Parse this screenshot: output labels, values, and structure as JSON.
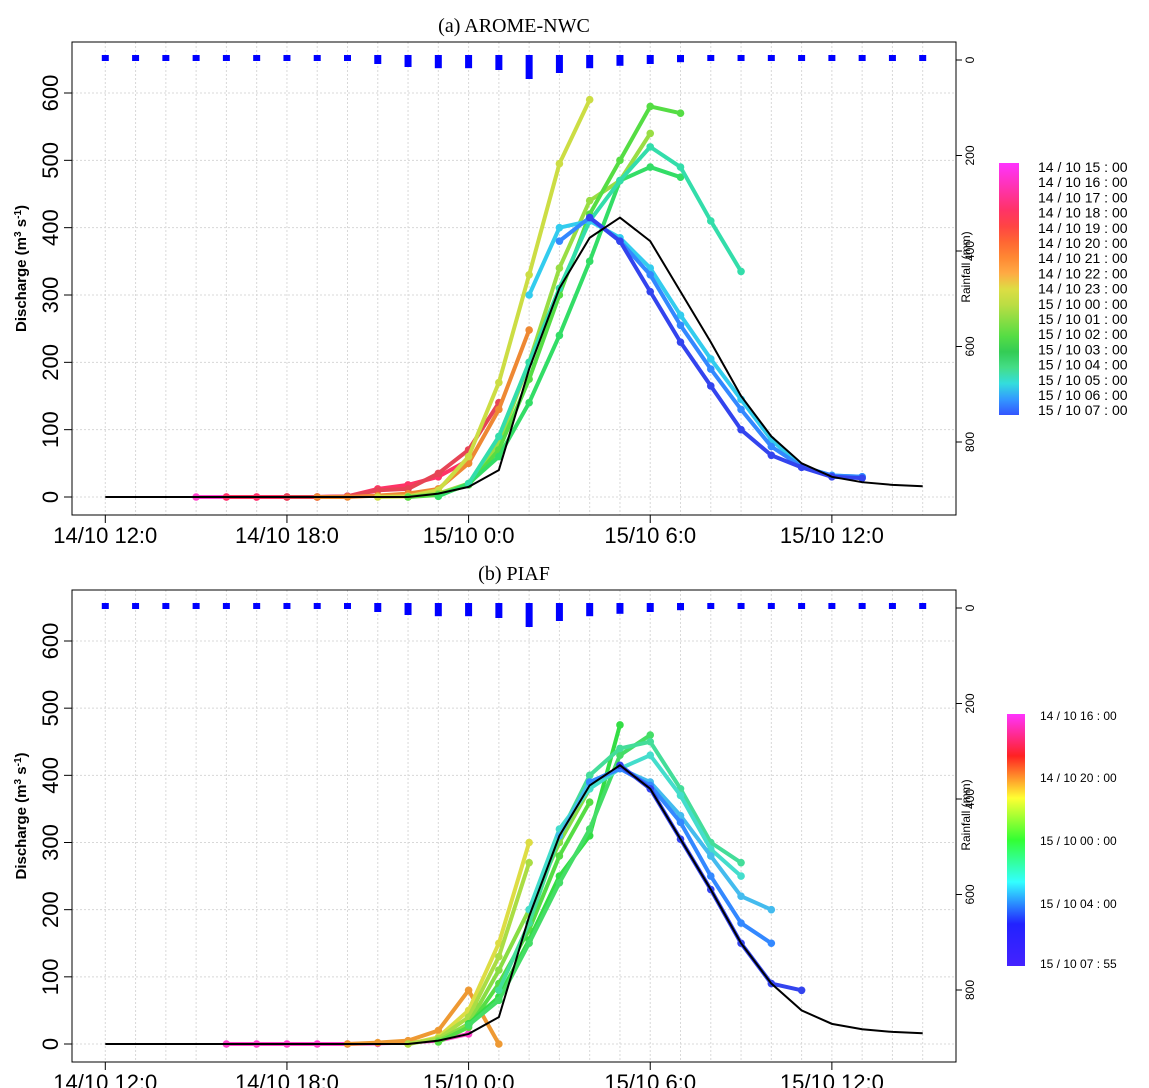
{
  "chart_data": [
    {
      "type": "line",
      "title": "(a) AROME-NWC",
      "ylabel": "Discharge (m³ s⁻¹)",
      "ylabel_main": "Discharge (m",
      "ylabel_sup1": "3",
      "ylabel_mid": " s",
      "ylabel_sup2": "-1",
      "ylabel_end": ")",
      "y2label": "Rainfall (mm)",
      "ylim": [
        0,
        620
      ],
      "y2lim": [
        0,
        900
      ],
      "y2_reversed": true,
      "yticks": [
        "0",
        "100",
        "200",
        "300",
        "400",
        "500",
        "600"
      ],
      "y2ticks": [
        "0",
        "200",
        "400",
        "600",
        "800"
      ],
      "xticks": [
        {
          "label": "14/10 12:0",
          "h": 0
        },
        {
          "label": "14/10 18:0",
          "h": 6
        },
        {
          "label": "15/10 0:0",
          "h": 12
        },
        {
          "label": "15/10 6:0",
          "h": 18
        },
        {
          "label": "15/10 12:0",
          "h": 24
        }
      ],
      "grid": true,
      "rain_h": [
        0,
        1,
        2,
        3,
        4,
        5,
        6,
        7,
        8,
        9,
        10,
        11,
        12,
        13,
        14,
        15,
        16,
        17,
        18,
        19,
        20,
        21,
        22,
        23,
        24,
        25,
        26,
        27
      ],
      "rain_mm": [
        10,
        10,
        10,
        10,
        10,
        10,
        10,
        10,
        10,
        15,
        20,
        22,
        22,
        25,
        40,
        30,
        22,
        18,
        15,
        12,
        10,
        10,
        10,
        10,
        10,
        10,
        10,
        10
      ],
      "observed": {
        "h": [
          0,
          6,
          10,
          11,
          12,
          13,
          14,
          15,
          16,
          17,
          18,
          19,
          20,
          21,
          22,
          23,
          24,
          25,
          26,
          27
        ],
        "values": [
          0,
          0,
          0,
          5,
          15,
          40,
          190,
          310,
          385,
          415,
          380,
          305,
          230,
          150,
          90,
          50,
          30,
          22,
          18,
          16
        ]
      },
      "legend_labels": [
        "14 / 10   15 : 00",
        "14 / 10   16 : 00",
        "14 / 10   17 : 00",
        "14 / 10   18 : 00",
        "14 / 10   19 : 00",
        "14 / 10   20 : 00",
        "14 / 10   21 : 00",
        "14 / 10   22 : 00",
        "14 / 10   23 : 00",
        "15 / 10   00 : 00",
        "15 / 10   01 : 00",
        "15 / 10   02 : 00",
        "15 / 10   03 : 00",
        "15 / 10   04 : 00",
        "15 / 10   05 : 00",
        "15 / 10   06 : 00",
        "15 / 10   07 : 00"
      ],
      "legend_colors": [
        "#ff33ff",
        "#ff33cc",
        "#ff3399",
        "#ff3366",
        "#ff4444",
        "#ff6633",
        "#ff8833",
        "#ffaa44",
        "#dddd44",
        "#bbdd44",
        "#88dd44",
        "#55dd44",
        "#33cc55",
        "#44dd88",
        "#33dddd",
        "#3399ff",
        "#3355ff"
      ],
      "series": [
        {
          "color": "#ff44cc",
          "h": [
            3,
            4,
            5,
            6,
            7,
            8,
            9,
            10
          ],
          "values": [
            0,
            0,
            0,
            0,
            0,
            1,
            2,
            3
          ]
        },
        {
          "color": "#ff3366",
          "h": [
            4,
            5,
            6,
            7,
            8,
            9,
            10,
            11,
            12
          ],
          "values": [
            0,
            0,
            0,
            0,
            1,
            12,
            18,
            30,
            55
          ]
        },
        {
          "color": "#e64455",
          "h": [
            6,
            7,
            8,
            9,
            10,
            11,
            12,
            13
          ],
          "values": [
            0,
            0,
            1,
            10,
            12,
            35,
            70,
            140
          ]
        },
        {
          "color": "#ee8833",
          "h": [
            7,
            8,
            9,
            10,
            11,
            12,
            13,
            14
          ],
          "values": [
            0,
            0,
            2,
            5,
            12,
            50,
            130,
            248
          ]
        },
        {
          "color": "#ccdd44",
          "h": [
            9,
            10,
            11,
            12,
            13,
            14,
            15,
            16
          ],
          "values": [
            0,
            1,
            10,
            60,
            170,
            330,
            495,
            590
          ]
        },
        {
          "color": "#99dd44",
          "h": [
            10,
            11,
            12,
            13,
            14,
            15,
            16,
            17,
            18
          ],
          "values": [
            0,
            5,
            20,
            80,
            200,
            340,
            440,
            470,
            540
          ]
        },
        {
          "color": "#55dd44",
          "h": [
            10,
            11,
            12,
            13,
            14,
            15,
            16,
            17,
            18,
            19
          ],
          "values": [
            0,
            3,
            18,
            70,
            175,
            300,
            420,
            500,
            580,
            570
          ]
        },
        {
          "color": "#33dd66",
          "h": [
            11,
            12,
            13,
            14,
            15,
            16,
            17,
            18,
            19
          ],
          "values": [
            1,
            20,
            60,
            140,
            240,
            350,
            470,
            490,
            475
          ]
        },
        {
          "color": "#33ddaa",
          "h": [
            12,
            13,
            14,
            15,
            16,
            17,
            18,
            19,
            20,
            21
          ],
          "values": [
            20,
            90,
            200,
            310,
            410,
            470,
            520,
            490,
            410,
            335
          ]
        },
        {
          "color": "#33ccee",
          "h": [
            14,
            15,
            16,
            17,
            18,
            19,
            20,
            21,
            22,
            23,
            24,
            25
          ],
          "values": [
            300,
            400,
            410,
            385,
            340,
            270,
            205,
            145,
            85,
            45,
            32,
            30
          ]
        },
        {
          "color": "#3388ff",
          "h": [
            15,
            16,
            17,
            18,
            19,
            20,
            21,
            22,
            23,
            24,
            25
          ],
          "values": [
            380,
            415,
            380,
            330,
            255,
            190,
            130,
            75,
            45,
            32,
            30
          ]
        },
        {
          "color": "#3344ee",
          "h": [
            16,
            17,
            18,
            19,
            20,
            21,
            22,
            23,
            24,
            25
          ],
          "values": [
            415,
            380,
            305,
            230,
            165,
            100,
            62,
            44,
            30,
            28
          ]
        }
      ]
    },
    {
      "type": "line",
      "title": "(b) PIAF",
      "ylabel": "Discharge (m³ s⁻¹)",
      "ylabel_main": "Discharge (m",
      "ylabel_sup1": "3",
      "ylabel_mid": " s",
      "ylabel_sup2": "-1",
      "ylabel_end": ")",
      "y2label": "Rainfall (mm)",
      "ylim": [
        0,
        620
      ],
      "y2lim": [
        0,
        900
      ],
      "y2_reversed": true,
      "yticks": [
        "0",
        "100",
        "200",
        "300",
        "400",
        "500",
        "600"
      ],
      "y2ticks": [
        "0",
        "200",
        "400",
        "600",
        "800"
      ],
      "xticks": [
        {
          "label": "14/10 12:0",
          "h": 0
        },
        {
          "label": "14/10 18:0",
          "h": 6
        },
        {
          "label": "15/10 0:0",
          "h": 12
        },
        {
          "label": "15/10 6:0",
          "h": 18
        },
        {
          "label": "15/10 12:0",
          "h": 24
        }
      ],
      "grid": true,
      "rain_h": [
        0,
        1,
        2,
        3,
        4,
        5,
        6,
        7,
        8,
        9,
        10,
        11,
        12,
        13,
        14,
        15,
        16,
        17,
        18,
        19,
        20,
        21,
        22,
        23,
        24,
        25,
        26,
        27
      ],
      "rain_mm": [
        10,
        10,
        10,
        10,
        10,
        10,
        10,
        10,
        10,
        15,
        20,
        22,
        22,
        25,
        40,
        30,
        22,
        18,
        15,
        12,
        10,
        10,
        10,
        10,
        10,
        10,
        10,
        10
      ],
      "observed": {
        "h": [
          0,
          6,
          10,
          11,
          12,
          13,
          14,
          15,
          16,
          17,
          18,
          19,
          20,
          21,
          22,
          23,
          24,
          25,
          26,
          27
        ],
        "values": [
          0,
          0,
          0,
          5,
          15,
          40,
          190,
          310,
          385,
          415,
          380,
          305,
          230,
          150,
          90,
          50,
          30,
          22,
          18,
          16
        ]
      },
      "legend_labels": [
        "14 / 10   16 : 00",
        "14 / 10   20 : 00",
        "15 / 10   00 : 00",
        "15 / 10   04 : 00",
        "15 / 10   07 : 55"
      ],
      "legend_colors": [
        "#ff33ff",
        "#ff2222",
        "#ffff33",
        "#33ff33",
        "#33ffff",
        "#2222ff",
        "#4422ff"
      ],
      "series": [
        {
          "color": "#ff44cc",
          "h": [
            4,
            5,
            6,
            7,
            8,
            9,
            10,
            11,
            12
          ],
          "values": [
            0,
            0,
            0,
            0,
            0,
            1,
            2,
            5,
            15
          ]
        },
        {
          "color": "#ee9933",
          "h": [
            8,
            9,
            10,
            11,
            12,
            13
          ],
          "values": [
            0,
            2,
            5,
            20,
            80,
            0
          ]
        },
        {
          "color": "#dddd44",
          "h": [
            10,
            11,
            12,
            13,
            14
          ],
          "values": [
            0,
            10,
            50,
            150,
            300
          ]
        },
        {
          "color": "#aadd44",
          "h": [
            10,
            11,
            12,
            13,
            14
          ],
          "values": [
            0,
            8,
            40,
            130,
            270
          ]
        },
        {
          "color": "#88dd44",
          "h": [
            11,
            12,
            13,
            14,
            15,
            16
          ],
          "values": [
            5,
            30,
            110,
            200,
            300,
            380
          ]
        },
        {
          "color": "#55dd44",
          "h": [
            11,
            12,
            13,
            14,
            15,
            16
          ],
          "values": [
            3,
            25,
            90,
            170,
            280,
            360
          ]
        },
        {
          "color": "#33dd44",
          "h": [
            12,
            13,
            14,
            15,
            16,
            17
          ],
          "values": [
            30,
            70,
            155,
            250,
            310,
            475
          ]
        },
        {
          "color": "#44dd66",
          "h": [
            12,
            13,
            14,
            15,
            16,
            17,
            18
          ],
          "values": [
            28,
            65,
            150,
            240,
            320,
            430,
            460
          ]
        },
        {
          "color": "#44dd99",
          "h": [
            13,
            14,
            15,
            16,
            17,
            18,
            19,
            20,
            21
          ],
          "values": [
            80,
            180,
            310,
            400,
            440,
            450,
            380,
            300,
            270
          ]
        },
        {
          "color": "#44ddcc",
          "h": [
            14,
            15,
            16,
            17,
            18,
            19,
            20,
            21
          ],
          "values": [
            200,
            320,
            380,
            410,
            430,
            370,
            290,
            250
          ]
        },
        {
          "color": "#44bbee",
          "h": [
            15,
            16,
            17,
            18,
            19,
            20,
            21,
            22
          ],
          "values": [
            310,
            390,
            410,
            390,
            340,
            280,
            220,
            200
          ]
        },
        {
          "color": "#3388ff",
          "h": [
            16,
            17,
            18,
            19,
            20,
            21,
            22
          ],
          "values": [
            390,
            410,
            385,
            330,
            250,
            180,
            150
          ]
        },
        {
          "color": "#3344ee",
          "h": [
            17,
            18,
            19,
            20,
            21,
            22,
            23
          ],
          "values": [
            415,
            380,
            305,
            230,
            150,
            90,
            80
          ]
        }
      ]
    }
  ]
}
